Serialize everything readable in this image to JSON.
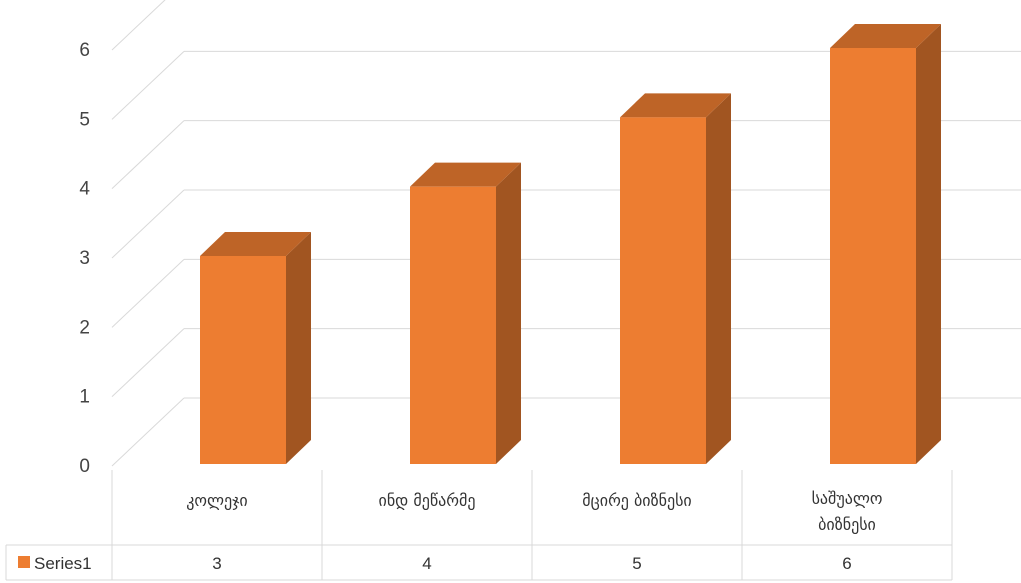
{
  "chart_data": {
    "type": "bar",
    "categories": [
      "კოლეჯი",
      "ინდ მეწარმე",
      "მცირე ბიზნესი",
      "საშუალო ბიზნესი"
    ],
    "series": [
      {
        "name": "Series1",
        "values": [
          3,
          4,
          5,
          6
        ],
        "color": "#ED7D31"
      }
    ],
    "y_ticks": [
      "0",
      "1",
      "2",
      "3",
      "4",
      "5",
      "6"
    ],
    "ylim": [
      0,
      6
    ],
    "grid": true,
    "legend": "data-table",
    "data_table": true,
    "title": "",
    "xlabel": "",
    "ylabel": ""
  }
}
